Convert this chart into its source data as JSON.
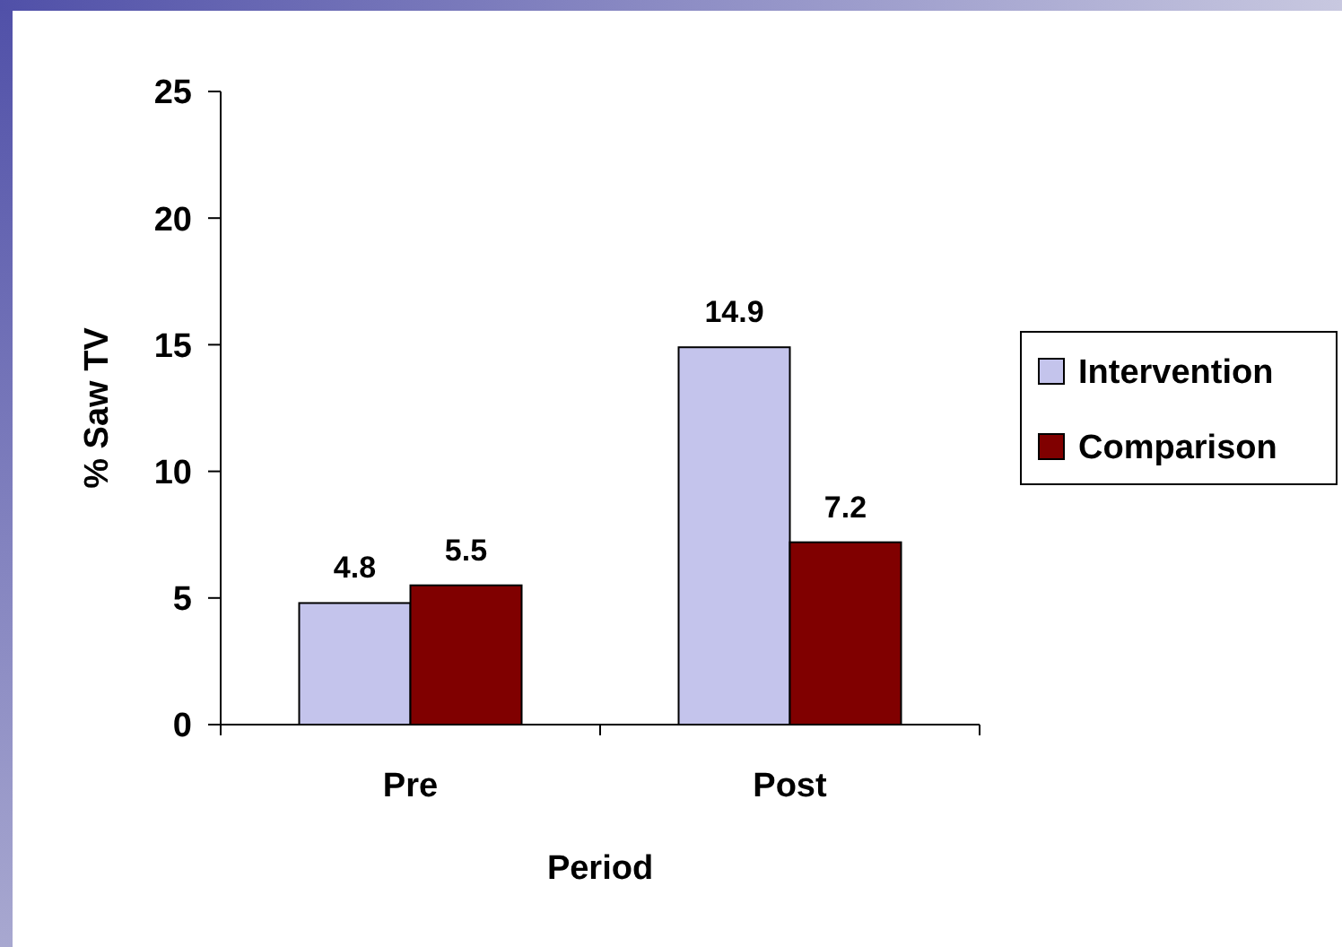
{
  "chart_data": {
    "type": "bar",
    "xlabel": "Period",
    "ylabel": "% Saw TV",
    "categories": [
      "Pre",
      "Post"
    ],
    "series": [
      {
        "name": "Intervention",
        "color": "#c4c4ec",
        "values": [
          4.8,
          14.9
        ]
      },
      {
        "name": "Comparison",
        "color": "#800000",
        "values": [
          5.5,
          7.2
        ]
      }
    ],
    "ylim": [
      0,
      25
    ],
    "yticks": [
      0,
      5,
      10,
      15,
      20,
      25
    ],
    "data_labels": true,
    "legend": "right",
    "grid": false
  }
}
